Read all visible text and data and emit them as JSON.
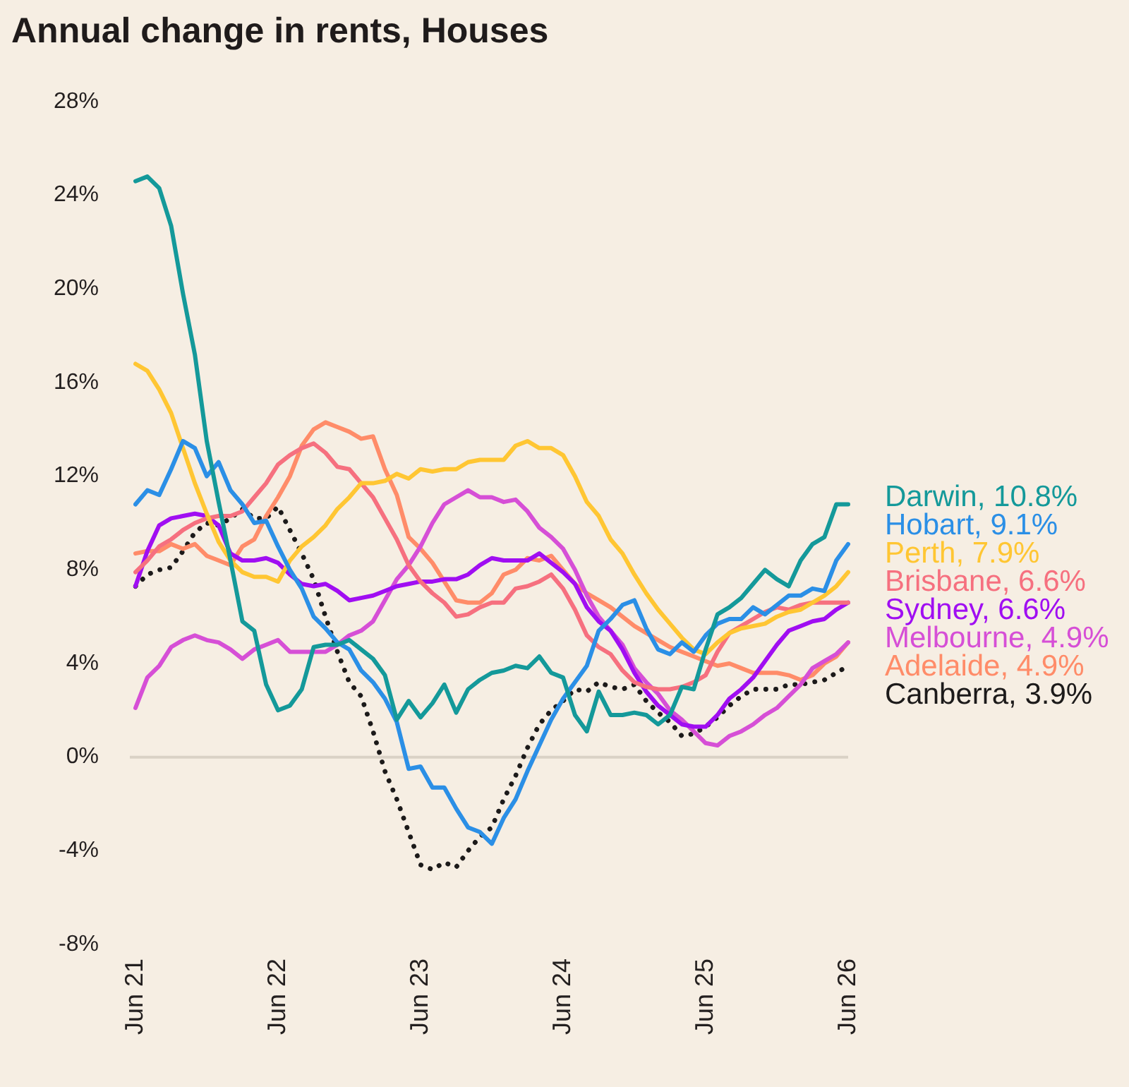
{
  "chart_data": {
    "type": "line",
    "title": "Annual change in rents, Houses",
    "categories": [
      "Jun 21",
      null,
      null,
      null,
      null,
      null,
      null,
      null,
      null,
      null,
      null,
      null,
      "Jun 22",
      null,
      null,
      null,
      null,
      null,
      null,
      null,
      null,
      null,
      null,
      null,
      "Jun 23",
      null,
      null,
      null,
      null,
      null,
      null,
      null,
      null,
      null,
      null,
      null,
      "Jun 24",
      null,
      null,
      null,
      null,
      null,
      null,
      null,
      null,
      null,
      null,
      null,
      "Jun 25",
      null,
      null,
      null,
      null,
      null,
      null,
      null,
      null,
      null,
      null,
      null,
      "Jun 26"
    ],
    "series": [
      {
        "name": "Darwin,",
        "color": "#14999a",
        "values": [
          24.6,
          24.8,
          24.3,
          22.7,
          19.8,
          17.2,
          13.5,
          10.9,
          8.4,
          5.8,
          5.4,
          3.1,
          2.0,
          2.2,
          2.9,
          4.7,
          4.8,
          4.8,
          5.0,
          4.6,
          4.2,
          3.5,
          1.6,
          2.4,
          1.7,
          2.3,
          3.1,
          1.9,
          2.9,
          3.3,
          3.6,
          3.7,
          3.9,
          3.8,
          4.3,
          3.6,
          3.4,
          1.8,
          1.1,
          2.8,
          1.8,
          1.8,
          1.9,
          1.8,
          1.4,
          1.8,
          3.0,
          2.9,
          4.6,
          6.1,
          6.4,
          6.8,
          7.4,
          8.0,
          7.6,
          7.3,
          8.4,
          9.1,
          9.4,
          10.8,
          10.8
        ],
        "value_labels": [
          null,
          null,
          null,
          null,
          null,
          null,
          null,
          null,
          null,
          null,
          null,
          null,
          null,
          null,
          null,
          null,
          null,
          null,
          null,
          null,
          null,
          null,
          null,
          null,
          null,
          null,
          null,
          null,
          null,
          null,
          null,
          null,
          null,
          null,
          null,
          null,
          null,
          null,
          null,
          null,
          null,
          null,
          null,
          null,
          null,
          null,
          null,
          null,
          null,
          null,
          null,
          null,
          null,
          null,
          null,
          null,
          null,
          null,
          null,
          null,
          "10.8%"
        ]
      },
      {
        "name": "Hobart,",
        "color": "#2b8fe6",
        "values": [
          10.8,
          11.4,
          11.2,
          12.3,
          13.5,
          13.2,
          12.0,
          12.6,
          11.4,
          10.8,
          10.0,
          10.1,
          9.0,
          8.0,
          7.2,
          6.0,
          5.5,
          4.9,
          4.6,
          3.7,
          3.2,
          2.5,
          1.5,
          -0.5,
          -0.4,
          -1.3,
          -1.3,
          -2.2,
          -3.0,
          -3.2,
          -3.7,
          -2.6,
          -1.8,
          -0.6,
          0.5,
          1.6,
          2.5,
          3.2,
          3.9,
          5.4,
          5.9,
          6.5,
          6.7,
          5.5,
          4.6,
          4.4,
          4.9,
          4.5,
          5.2,
          5.7,
          5.9,
          5.9,
          6.4,
          6.1,
          6.5,
          6.9,
          6.9,
          7.2,
          7.1,
          8.4,
          9.1
        ],
        "value_labels": [
          null,
          null,
          null,
          null,
          null,
          null,
          null,
          null,
          null,
          null,
          null,
          null,
          null,
          null,
          null,
          null,
          null,
          null,
          null,
          null,
          null,
          null,
          null,
          null,
          null,
          null,
          null,
          null,
          null,
          null,
          null,
          null,
          null,
          null,
          null,
          null,
          null,
          null,
          null,
          null,
          null,
          null,
          null,
          null,
          null,
          null,
          null,
          null,
          null,
          null,
          null,
          null,
          null,
          null,
          null,
          null,
          null,
          null,
          null,
          null,
          "9.1%"
        ]
      },
      {
        "name": "Perth,",
        "color": "#ffc633",
        "values": [
          16.8,
          16.5,
          15.7,
          14.7,
          13.2,
          11.7,
          10.4,
          9.2,
          8.4,
          7.9,
          7.7,
          7.7,
          7.5,
          8.4,
          9.0,
          9.4,
          9.9,
          10.6,
          11.1,
          11.7,
          11.7,
          11.8,
          12.1,
          11.9,
          12.3,
          12.2,
          12.3,
          12.3,
          12.6,
          12.7,
          12.7,
          12.7,
          13.3,
          13.5,
          13.2,
          13.2,
          12.9,
          12.0,
          10.9,
          10.3,
          9.3,
          8.7,
          7.8,
          7.0,
          6.3,
          5.7,
          5.1,
          4.6,
          4.4,
          4.9,
          5.3,
          5.5,
          5.6,
          5.7,
          6.0,
          6.2,
          6.3,
          6.6,
          6.9,
          7.3,
          7.9
        ],
        "value_labels": [
          null,
          null,
          null,
          null,
          null,
          null,
          null,
          null,
          null,
          null,
          null,
          null,
          null,
          null,
          null,
          null,
          null,
          null,
          null,
          null,
          null,
          null,
          null,
          null,
          null,
          null,
          null,
          null,
          null,
          null,
          null,
          null,
          null,
          null,
          null,
          null,
          null,
          null,
          null,
          null,
          null,
          null,
          null,
          null,
          null,
          null,
          null,
          null,
          null,
          null,
          null,
          null,
          null,
          null,
          null,
          null,
          null,
          null,
          null,
          null,
          "7.9%"
        ]
      },
      {
        "name": "Brisbane,",
        "color": "#f6707f",
        "values": [
          7.9,
          8.4,
          9.0,
          9.3,
          9.7,
          10.0,
          10.2,
          10.3,
          10.3,
          10.5,
          11.1,
          11.7,
          12.5,
          12.9,
          13.2,
          13.4,
          13.0,
          12.4,
          12.3,
          11.7,
          11.1,
          10.2,
          9.3,
          8.2,
          7.5,
          7.0,
          6.6,
          6.0,
          6.1,
          6.4,
          6.6,
          6.6,
          7.2,
          7.3,
          7.5,
          7.8,
          7.2,
          6.3,
          5.2,
          4.7,
          4.4,
          3.7,
          3.2,
          3.0,
          2.9,
          2.9,
          3.0,
          3.2,
          3.5,
          4.5,
          5.3,
          5.6,
          5.9,
          6.2,
          6.4,
          6.3,
          6.5,
          6.6,
          6.6,
          6.6,
          6.6
        ],
        "value_labels": [
          null,
          null,
          null,
          null,
          null,
          null,
          null,
          null,
          null,
          null,
          null,
          null,
          null,
          null,
          null,
          null,
          null,
          null,
          null,
          null,
          null,
          null,
          null,
          null,
          null,
          null,
          null,
          null,
          null,
          null,
          null,
          null,
          null,
          null,
          null,
          null,
          null,
          null,
          null,
          null,
          null,
          null,
          null,
          null,
          null,
          null,
          null,
          null,
          null,
          null,
          null,
          null,
          null,
          null,
          null,
          null,
          null,
          null,
          null,
          null,
          "6.6%"
        ]
      },
      {
        "name": "Sydney,",
        "color": "#a00ef2",
        "values": [
          7.3,
          8.8,
          9.9,
          10.2,
          10.3,
          10.4,
          10.3,
          9.9,
          8.7,
          8.4,
          8.4,
          8.5,
          8.3,
          7.8,
          7.4,
          7.3,
          7.4,
          7.1,
          6.7,
          6.8,
          6.9,
          7.1,
          7.3,
          7.4,
          7.5,
          7.5,
          7.6,
          7.6,
          7.8,
          8.2,
          8.5,
          8.4,
          8.4,
          8.4,
          8.7,
          8.3,
          7.9,
          7.4,
          6.4,
          5.8,
          5.4,
          4.6,
          3.6,
          2.8,
          2.2,
          1.8,
          1.4,
          1.3,
          1.3,
          1.8,
          2.5,
          2.9,
          3.4,
          4.1,
          4.8,
          5.4,
          5.6,
          5.8,
          5.9,
          6.3,
          6.6
        ],
        "value_labels": [
          null,
          null,
          null,
          null,
          null,
          null,
          null,
          null,
          null,
          null,
          null,
          null,
          null,
          null,
          null,
          null,
          null,
          null,
          null,
          null,
          null,
          null,
          null,
          null,
          null,
          null,
          null,
          null,
          null,
          null,
          null,
          null,
          null,
          null,
          null,
          null,
          null,
          null,
          null,
          null,
          null,
          null,
          null,
          null,
          null,
          null,
          null,
          null,
          null,
          null,
          null,
          null,
          null,
          null,
          null,
          null,
          null,
          null,
          null,
          null,
          "6.6%"
        ]
      },
      {
        "name": "Melbourne,",
        "color": "#d64fd6",
        "values": [
          2.1,
          3.4,
          3.9,
          4.7,
          5.0,
          5.2,
          5.0,
          4.9,
          4.6,
          4.2,
          4.6,
          4.8,
          5.0,
          4.5,
          4.5,
          4.5,
          4.5,
          4.8,
          5.2,
          5.4,
          5.8,
          6.7,
          7.6,
          8.2,
          9.0,
          10.0,
          10.8,
          11.1,
          11.4,
          11.1,
          11.1,
          10.9,
          11.0,
          10.5,
          9.8,
          9.4,
          8.9,
          8.0,
          6.9,
          6.0,
          5.4,
          4.8,
          3.8,
          3.2,
          2.7,
          2.0,
          1.6,
          1.1,
          0.6,
          0.5,
          0.9,
          1.1,
          1.4,
          1.8,
          2.1,
          2.6,
          3.1,
          3.8,
          4.1,
          4.4,
          4.9
        ],
        "value_labels": [
          null,
          null,
          null,
          null,
          null,
          null,
          null,
          null,
          null,
          null,
          null,
          null,
          null,
          null,
          null,
          null,
          null,
          null,
          null,
          null,
          null,
          null,
          null,
          null,
          null,
          null,
          null,
          null,
          null,
          null,
          null,
          null,
          null,
          null,
          null,
          null,
          null,
          null,
          null,
          null,
          null,
          null,
          null,
          null,
          null,
          null,
          null,
          null,
          null,
          null,
          null,
          null,
          null,
          null,
          null,
          null,
          null,
          null,
          null,
          null,
          "4.9%"
        ]
      },
      {
        "name": "Adelaide,",
        "color": "#ff8c69",
        "values": [
          8.7,
          8.8,
          8.8,
          9.1,
          8.9,
          9.1,
          8.6,
          8.4,
          8.2,
          9.0,
          9.3,
          10.3,
          11.1,
          12.0,
          13.3,
          14.0,
          14.3,
          14.1,
          13.9,
          13.6,
          13.7,
          12.3,
          11.2,
          9.4,
          8.9,
          8.3,
          7.5,
          6.7,
          6.6,
          6.6,
          7.0,
          7.8,
          8.0,
          8.5,
          8.4,
          8.6,
          8.0,
          7.4,
          7.0,
          6.7,
          6.4,
          6.0,
          5.6,
          5.3,
          5.0,
          4.7,
          4.5,
          4.3,
          4.1,
          3.9,
          4.0,
          3.8,
          3.6,
          3.6,
          3.6,
          3.5,
          3.3,
          3.5,
          4.0,
          4.3,
          4.9
        ],
        "value_labels": [
          null,
          null,
          null,
          null,
          null,
          null,
          null,
          null,
          null,
          null,
          null,
          null,
          null,
          null,
          null,
          null,
          null,
          null,
          null,
          null,
          null,
          null,
          null,
          null,
          null,
          null,
          null,
          null,
          null,
          null,
          null,
          null,
          null,
          null,
          null,
          null,
          null,
          null,
          null,
          null,
          null,
          null,
          null,
          null,
          null,
          null,
          null,
          null,
          null,
          null,
          null,
          null,
          null,
          null,
          null,
          null,
          null,
          null,
          null,
          null,
          "4.9%"
        ]
      },
      {
        "name": "Canberra,",
        "color": "#1c1a1a",
        "line_style": "dotted",
        "values": [
          7.3,
          7.8,
          8.0,
          8.1,
          8.8,
          9.6,
          10.0,
          9.9,
          10.2,
          10.6,
          10.2,
          10.2,
          10.7,
          9.7,
          8.7,
          7.6,
          6.0,
          4.5,
          3.2,
          2.6,
          1.1,
          -0.6,
          -1.8,
          -3.2,
          -4.6,
          -4.8,
          -4.5,
          -4.7,
          -4.0,
          -3.4,
          -3.0,
          -1.8,
          -0.8,
          0.4,
          1.4,
          2.0,
          2.4,
          2.9,
          2.8,
          3.2,
          3.0,
          2.9,
          3.1,
          2.4,
          1.9,
          1.5,
          0.9,
          1.0,
          1.3,
          1.7,
          2.2,
          2.6,
          2.9,
          2.9,
          2.9,
          3.1,
          3.1,
          3.2,
          3.3,
          3.6,
          3.9
        ],
        "value_labels": [
          null,
          null,
          null,
          null,
          null,
          null,
          null,
          null,
          null,
          null,
          null,
          null,
          null,
          null,
          null,
          null,
          null,
          null,
          null,
          null,
          null,
          null,
          null,
          null,
          null,
          null,
          null,
          null,
          null,
          null,
          null,
          null,
          null,
          null,
          null,
          null,
          null,
          null,
          null,
          null,
          null,
          null,
          null,
          null,
          null,
          null,
          null,
          null,
          null,
          null,
          null,
          null,
          null,
          null,
          null,
          null,
          null,
          null,
          null,
          null,
          "3.9%"
        ]
      }
    ],
    "ylim": [
      -8,
      28
    ],
    "yticks": [
      {
        "value": -8,
        "label": "-8%"
      },
      {
        "value": -4,
        "label": "-4%"
      },
      {
        "value": 0,
        "label": "0%"
      },
      {
        "value": 4,
        "label": "4%"
      },
      {
        "value": 8,
        "label": "8%"
      },
      {
        "value": 12,
        "label": "12%"
      },
      {
        "value": 16,
        "label": "16%"
      },
      {
        "value": 20,
        "label": "20%"
      },
      {
        "value": 24,
        "label": "24%"
      },
      {
        "value": 28,
        "label": "28%"
      }
    ],
    "grid": false,
    "legend": false,
    "marker": "none",
    "line_style": "solid",
    "ref_lines": [
      {
        "axis": "y",
        "value": 0,
        "color": "#dad2c6"
      }
    ]
  }
}
